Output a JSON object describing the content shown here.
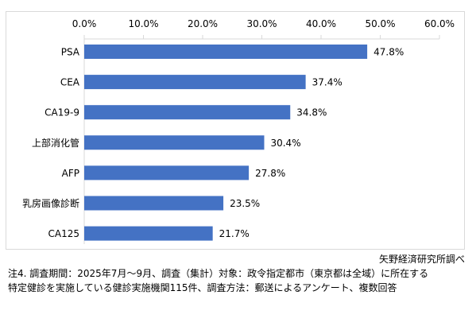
{
  "chart_data": {
    "type": "bar",
    "orientation": "horizontal",
    "categories": [
      "PSA",
      "CEA",
      "CA19-9",
      "上部消化管",
      "AFP",
      "乳房画像診断",
      "CA125"
    ],
    "values": [
      47.8,
      37.4,
      34.8,
      30.4,
      27.8,
      23.5,
      21.7
    ],
    "value_labels": [
      "47.8%",
      "37.4%",
      "34.8%",
      "30.4%",
      "27.8%",
      "23.5%",
      "21.7%"
    ],
    "xlim": [
      0,
      60
    ],
    "x_ticks": [
      0,
      10,
      20,
      30,
      40,
      50,
      60
    ],
    "x_tick_labels": [
      "0.0%",
      "10.0%",
      "20.0%",
      "30.0%",
      "40.0%",
      "50.0%",
      "60.0%"
    ],
    "x_axis_position": "top",
    "grid": false,
    "bar_color": "#4472c4",
    "title": "",
    "xlabel": "",
    "ylabel": ""
  },
  "notes": {
    "source": "矢野経済研究所調べ",
    "line1": "注4.  調査期間：2025年7月～9月、調査（集計）対象：政令指定都市（東京都は全域）に所在する",
    "line2": "特定健診を実施している健診実施機関115件、調査方法：郵送によるアンケート、複数回答"
  }
}
